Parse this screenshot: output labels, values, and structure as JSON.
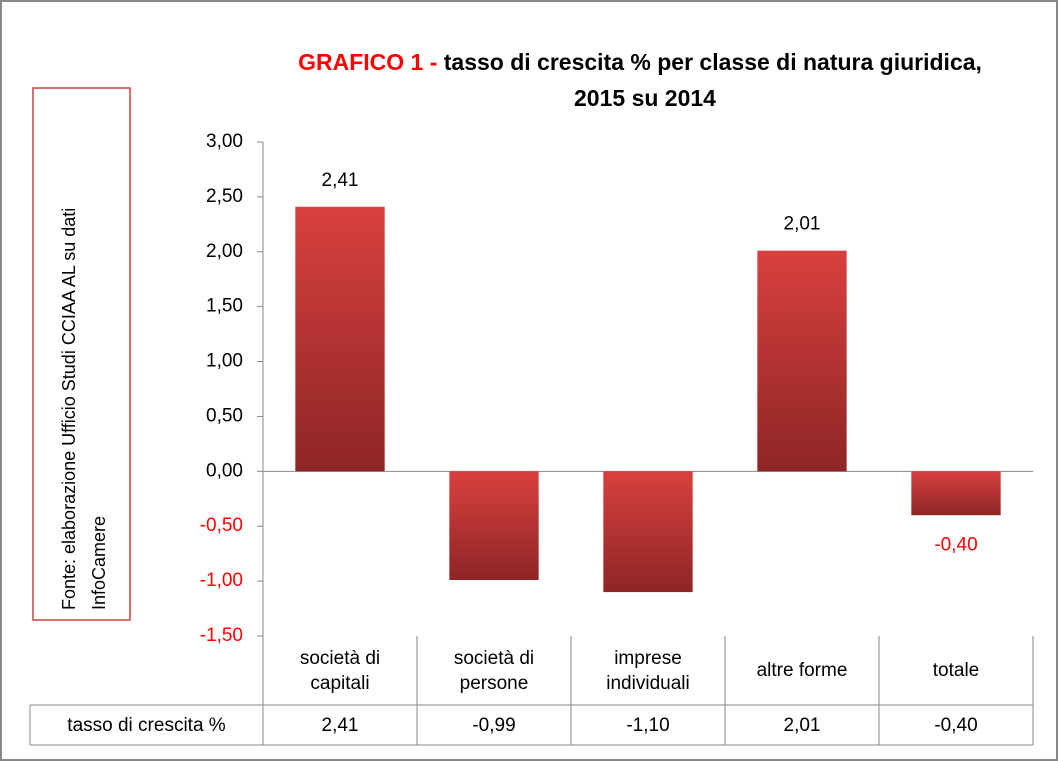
{
  "chart_data": {
    "type": "bar",
    "title_highlight": "GRAFICO 1 -",
    "title_lines": [
      "tasso di crescita % per classe di natura giuridica,",
      "2015 su 2014"
    ],
    "source_lines": [
      "Fonte: elaborazione Ufficio Studi CCIAA AL su dati",
      "InfoCamere"
    ],
    "categories": [
      "società di capitali",
      "società di persone",
      "imprese individuali",
      "altre forme",
      "totale"
    ],
    "values": [
      2.41,
      -0.99,
      -1.1,
      2.01,
      -0.4
    ],
    "value_labels": [
      "2,41",
      null,
      null,
      "2,01",
      "-0,40"
    ],
    "color": "#c83232",
    "negative_color": "#ff0000",
    "ylim": [
      -1.5,
      3
    ],
    "yticks": [
      {
        "value": 3,
        "label": "3,00"
      },
      {
        "value": 2.5,
        "label": "2,50"
      },
      {
        "value": 2,
        "label": "2,00"
      },
      {
        "value": 1.5,
        "label": "1,50"
      },
      {
        "value": 1,
        "label": "1,00"
      },
      {
        "value": 0.5,
        "label": "0,50"
      },
      {
        "value": 0,
        "label": "0,00"
      },
      {
        "value": -0.5,
        "label": "-0,50"
      },
      {
        "value": -1,
        "label": "-1,00"
      },
      {
        "value": -1.5,
        "label": "-1,50"
      }
    ],
    "grid": false,
    "data_table": {
      "row_label": "tasso di crescita %",
      "cells": [
        "2,41",
        "-0,99",
        "-1,10",
        "2,01",
        "-0,40"
      ]
    }
  }
}
